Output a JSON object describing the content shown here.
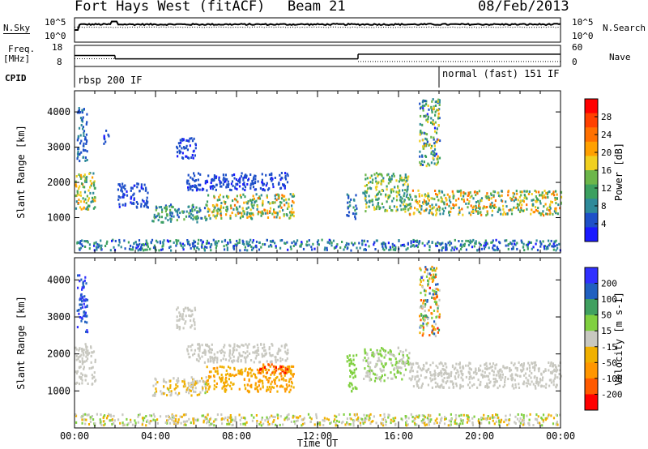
{
  "header": {
    "title": "Fort Hays West (fitACF)",
    "beam": "Beam 21",
    "date": "08/Feb/2013"
  },
  "sky_panel": {
    "left_label": "N.Sky",
    "right_label": "N.Search",
    "left_ticks": [
      "10^5",
      "10^0"
    ],
    "right_ticks": [
      "10^5",
      "10^0"
    ]
  },
  "freq_panel": {
    "left_label_top": "Freq.",
    "left_label_bottom": "[MHz]",
    "left_ticks": [
      "18",
      "8"
    ],
    "right_label": "Nave",
    "right_ticks": [
      "60",
      "0"
    ],
    "segments": [
      {
        "x0": 0,
        "x1": 2,
        "freq": 13.2,
        "nave": 22
      },
      {
        "x0": 2,
        "x1": 14,
        "freq": 11.6,
        "nave": 22
      },
      {
        "x0": 14,
        "x1": 24,
        "freq": 13.8,
        "nave": 14
      }
    ]
  },
  "cpid": {
    "label": "CPID",
    "segments": [
      {
        "start": 0,
        "text": "rbsp 200 IF"
      },
      {
        "start": 18,
        "text": "normal (fast) 151 IF"
      }
    ]
  },
  "colors": {
    "power": [
      "#1a1aff",
      "#1e50c8",
      "#2e8a9a",
      "#3ca060",
      "#6cb64a",
      "#f0d020",
      "#ffa000",
      "#ff7000",
      "#ff4000",
      "#ff0000"
    ],
    "velocity": [
      "#ff0000",
      "#ff5a00",
      "#ff9600",
      "#f0b000",
      "#c8c8c0",
      "#80d040",
      "#40a060",
      "#2060c0",
      "#3030ff"
    ]
  },
  "chart_data": [
    {
      "type": "heatmap",
      "name": "Power",
      "xlabel": "",
      "ylabel": "Slant Range [km]",
      "xlim": [
        0,
        24
      ],
      "ylim": [
        0,
        4600
      ],
      "yticks": [
        1000,
        2000,
        3000,
        4000
      ],
      "colorbar": {
        "label": "Power [dB]",
        "ticks": [
          "4",
          "8",
          "12",
          "16",
          "20",
          "24",
          "28"
        ],
        "range": [
          0,
          30
        ]
      },
      "regions": [
        {
          "x0": 0.0,
          "x1": 1.0,
          "y0": 1200,
          "y1": 2300,
          "v0": 6,
          "v1": 22
        },
        {
          "x0": 0.1,
          "x1": 0.6,
          "y0": 2600,
          "y1": 4200,
          "v0": 3,
          "v1": 8
        },
        {
          "x0": 1.4,
          "x1": 1.7,
          "y0": 3100,
          "y1": 3500,
          "v0": 2,
          "v1": 6
        },
        {
          "x0": 2.1,
          "x1": 3.6,
          "y0": 1300,
          "y1": 2000,
          "v0": 2,
          "v1": 6
        },
        {
          "x0": 3.8,
          "x1": 6.5,
          "y0": 900,
          "y1": 1400,
          "v0": 4,
          "v1": 14
        },
        {
          "x0": 5.0,
          "x1": 6.0,
          "y0": 2700,
          "y1": 3300,
          "v0": 2,
          "v1": 6
        },
        {
          "x0": 6.5,
          "x1": 10.8,
          "y0": 1000,
          "y1": 1700,
          "v0": 6,
          "v1": 22
        },
        {
          "x0": 5.5,
          "x1": 10.5,
          "y0": 1800,
          "y1": 2300,
          "v0": 2,
          "v1": 6
        },
        {
          "x0": 13.4,
          "x1": 13.9,
          "y0": 1000,
          "y1": 1700,
          "v0": 3,
          "v1": 10
        },
        {
          "x0": 14.2,
          "x1": 16.5,
          "y0": 1200,
          "y1": 2300,
          "v0": 6,
          "v1": 18
        },
        {
          "x0": 16.5,
          "x1": 24.0,
          "y0": 1100,
          "y1": 1800,
          "v0": 6,
          "v1": 24
        },
        {
          "x0": 17.0,
          "x1": 18.0,
          "y0": 2500,
          "y1": 4400,
          "v0": 2,
          "v1": 20
        },
        {
          "x0": 0.0,
          "x1": 24.0,
          "y0": 100,
          "y1": 400,
          "v0": 2,
          "v1": 12
        }
      ]
    },
    {
      "type": "heatmap",
      "name": "Velocity",
      "xlabel": "Time UT",
      "ylabel": "Slant Range [km]",
      "xlim": [
        0,
        24
      ],
      "ylim": [
        0,
        4600
      ],
      "yticks": [
        1000,
        2000,
        3000,
        4000
      ],
      "xticks": [
        "00:00",
        "04:00",
        "08:00",
        "12:00",
        "16:00",
        "20:00",
        "00:00"
      ],
      "colorbar": {
        "label": "Velocity [m s-1]",
        "ticks": [
          "200",
          "100",
          "50",
          "15",
          "-15",
          "-50",
          "-100",
          "-200"
        ],
        "range": [
          -250,
          250
        ]
      },
      "regions": [
        {
          "x0": 0.0,
          "x1": 1.0,
          "y0": 1200,
          "y1": 2300,
          "v0": -10,
          "v1": 10
        },
        {
          "x0": 0.1,
          "x1": 0.6,
          "y0": 2600,
          "y1": 4200,
          "v0": 150,
          "v1": 220
        },
        {
          "x0": 3.8,
          "x1": 6.5,
          "y0": 900,
          "y1": 1400,
          "v0": -60,
          "v1": 30
        },
        {
          "x0": 5.5,
          "x1": 10.5,
          "y0": 1800,
          "y1": 2300,
          "v0": -10,
          "v1": 10
        },
        {
          "x0": 5.0,
          "x1": 6.0,
          "y0": 2700,
          "y1": 3300,
          "v0": -10,
          "v1": 10
        },
        {
          "x0": 6.5,
          "x1": 10.8,
          "y0": 1000,
          "y1": 1700,
          "v0": -120,
          "v1": -30
        },
        {
          "x0": 9.0,
          "x1": 10.5,
          "y0": 1500,
          "y1": 1750,
          "v0": -230,
          "v1": -120
        },
        {
          "x0": 13.4,
          "x1": 13.9,
          "y0": 1000,
          "y1": 2000,
          "v0": 30,
          "v1": 80
        },
        {
          "x0": 14.2,
          "x1": 16.5,
          "y0": 1300,
          "y1": 2200,
          "v0": -10,
          "v1": 60
        },
        {
          "x0": 16.5,
          "x1": 24.0,
          "y0": 1100,
          "y1": 1800,
          "v0": -12,
          "v1": 12
        },
        {
          "x0": 17.0,
          "x1": 18.0,
          "y0": 2500,
          "y1": 4400,
          "v0": -200,
          "v1": 200
        },
        {
          "x0": 0.0,
          "x1": 24.0,
          "y0": 100,
          "y1": 400,
          "v0": -60,
          "v1": 60
        }
      ]
    }
  ]
}
